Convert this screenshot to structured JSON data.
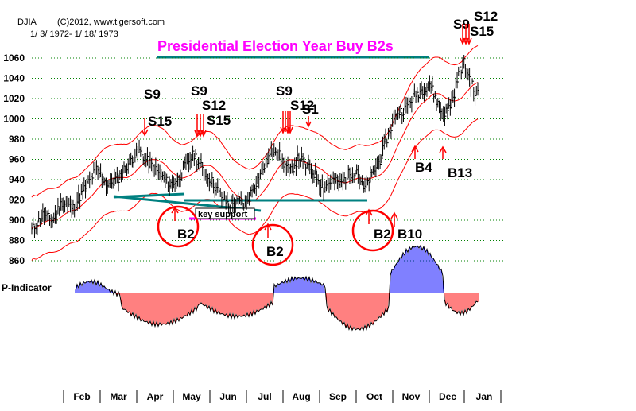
{
  "header": {
    "symbol": "DJIA",
    "copyright": "(C)2012, www.tigersoft.com",
    "date_range": "1/ 3/ 1972- 1/ 18/ 1973"
  },
  "chart_data": {
    "type": "ohlc",
    "title": "Presidential Election Year Buy B2s",
    "y_ticks": [
      860,
      880,
      900,
      920,
      940,
      960,
      980,
      1000,
      1020,
      1040,
      1060
    ],
    "ylim": [
      850,
      1072
    ],
    "months": [
      "Feb",
      "Mar",
      "Apr",
      "May",
      "Jun",
      "Jul",
      "Aug",
      "Sep",
      "Oct",
      "Nov",
      "Dec",
      "Jan"
    ],
    "indicator_label": "P-Indicator",
    "key_support_label": "key support",
    "price_anchors": [
      [
        0,
        890
      ],
      [
        8,
        905
      ],
      [
        15,
        900
      ],
      [
        22,
        918
      ],
      [
        30,
        912
      ],
      [
        40,
        935
      ],
      [
        47,
        950
      ],
      [
        55,
        935
      ],
      [
        63,
        942
      ],
      [
        72,
        960
      ],
      [
        78,
        968
      ],
      [
        86,
        955
      ],
      [
        93,
        945
      ],
      [
        100,
        935
      ],
      [
        106,
        940
      ],
      [
        112,
        955
      ],
      [
        118,
        965
      ],
      [
        124,
        950
      ],
      [
        130,
        940
      ],
      [
        137,
        925
      ],
      [
        143,
        915
      ],
      [
        150,
        918
      ],
      [
        155,
        915
      ],
      [
        160,
        930
      ],
      [
        167,
        948
      ],
      [
        172,
        962
      ],
      [
        177,
        972
      ],
      [
        182,
        958
      ],
      [
        188,
        948
      ],
      [
        194,
        962
      ],
      [
        200,
        952
      ],
      [
        206,
        945
      ],
      [
        212,
        932
      ],
      [
        218,
        940
      ],
      [
        224,
        935
      ],
      [
        230,
        945
      ],
      [
        236,
        950
      ],
      [
        241,
        930
      ],
      [
        247,
        945
      ],
      [
        253,
        960
      ],
      [
        259,
        985
      ],
      [
        265,
        1005
      ],
      [
        271,
        1010
      ],
      [
        277,
        1022
      ],
      [
        283,
        1028
      ],
      [
        289,
        1035
      ],
      [
        294,
        1018
      ],
      [
        298,
        1005
      ],
      [
        302,
        1008
      ],
      [
        306,
        1020
      ],
      [
        310,
        1045
      ],
      [
        314,
        1055
      ],
      [
        318,
        1040
      ],
      [
        322,
        1025
      ]
    ],
    "signals": [
      {
        "label": "S9",
        "type": "sell",
        "x": 80
      },
      {
        "label": "S15",
        "type": "sell",
        "x": 80
      },
      {
        "label": "S9",
        "type": "sell",
        "x": 113
      },
      {
        "label": "S12",
        "type": "sell",
        "x": 115
      },
      {
        "label": "S15",
        "type": "sell",
        "x": 117
      },
      {
        "label": "S9",
        "type": "sell",
        "x": 174
      },
      {
        "label": "S12",
        "type": "sell",
        "x": 175
      },
      {
        "label": "S1",
        "type": "sell",
        "x": 184
      },
      {
        "label": "S9",
        "type": "sell",
        "x": 310
      },
      {
        "label": "S12",
        "type": "sell",
        "x": 312
      },
      {
        "label": "S15",
        "type": "sell",
        "x": 312
      },
      {
        "label": "B2",
        "type": "buy",
        "x": 98
      },
      {
        "label": "B2",
        "type": "buy",
        "x": 156
      },
      {
        "label": "B2",
        "type": "buy",
        "x": 240
      },
      {
        "label": "B10",
        "type": "buy",
        "x": 258
      },
      {
        "label": "B4",
        "type": "buy",
        "x": 274
      },
      {
        "label": "B13",
        "type": "buy",
        "x": 288
      }
    ],
    "colors": {
      "price": "#000000",
      "band": "#ff0000",
      "trend": "#008080",
      "title": "#ff00ff",
      "indicator_pos": "#0000ff",
      "indicator_neg": "#ff0000",
      "circle": "#ff0000",
      "grid": "#008000"
    }
  }
}
